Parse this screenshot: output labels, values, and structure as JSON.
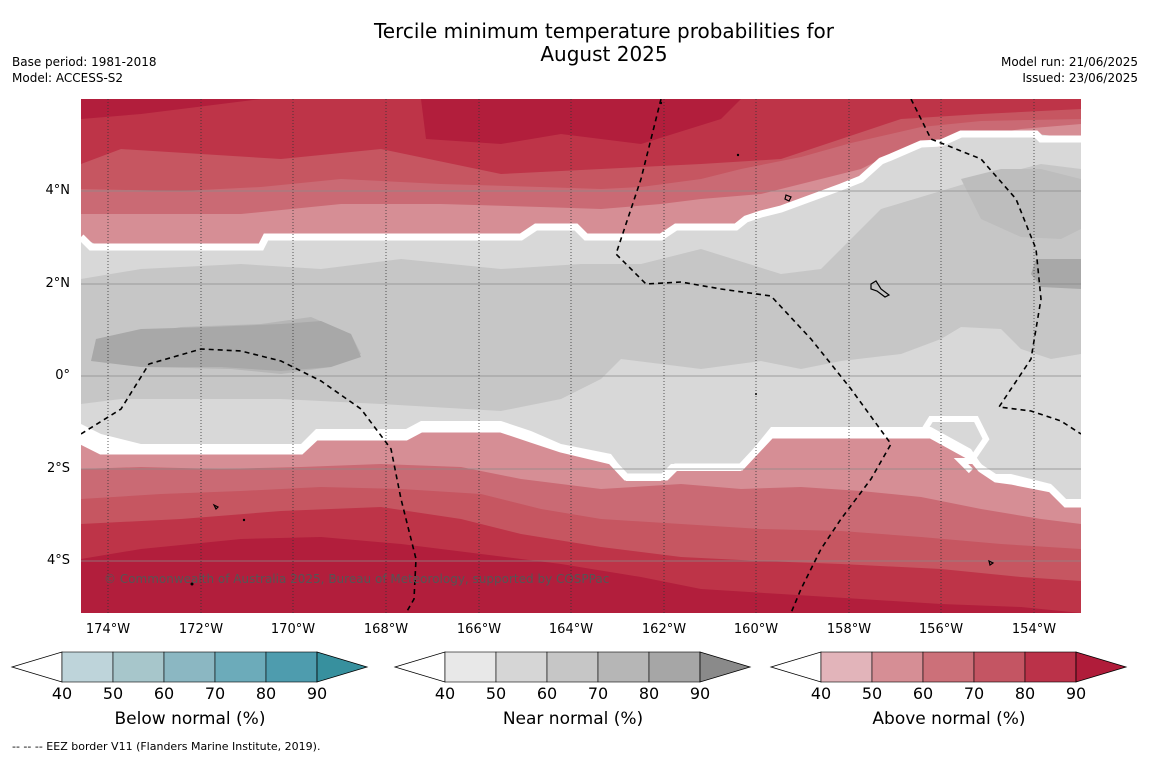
{
  "title": {
    "line1": "Tercile minimum temperature probabilities for",
    "line2": "August 2025"
  },
  "meta_left": {
    "base_period": "Base period: 1981-2018",
    "model": "Model: ACCESS-S2"
  },
  "meta_right": {
    "model_run": "Model run: 21/06/2025",
    "issued": "Issued: 23/06/2025"
  },
  "map": {
    "lat_labels": [
      "4°N",
      "2°N",
      "0°",
      "2°S",
      "4°S"
    ],
    "lon_labels": [
      "174°W",
      "172°W",
      "170°W",
      "168°W",
      "166°W",
      "164°W",
      "162°W",
      "160°W",
      "158°W",
      "156°W",
      "154°W"
    ],
    "copyright": "© Commonwealth of Australia 2025, Bureau of Meteorology, supported by COSPPac",
    "colors": {
      "above_90": "#b21e3c",
      "above_80": "#be3448",
      "above_70": "#c65661",
      "above_60": "#ca6a74",
      "above_50": "#d68e95",
      "near_50": "#d8d8d8",
      "near_60": "#c6c6c6",
      "near_70": "#b6b6b6",
      "near_80": "#a8a8a8"
    }
  },
  "colorbars": [
    {
      "label": "Below normal (%)",
      "ticks": [
        "40",
        "50",
        "60",
        "70",
        "80",
        "90"
      ],
      "colors": [
        "#bed4da",
        "#a7c6cb",
        "#8bb7c2",
        "#6cabba",
        "#4e9cae",
        "#37909e"
      ]
    },
    {
      "label": "Near normal (%)",
      "ticks": [
        "40",
        "50",
        "60",
        "70",
        "80",
        "90"
      ],
      "colors": [
        "#e8e8e8",
        "#d6d6d6",
        "#c6c6c6",
        "#b6b6b6",
        "#a6a6a6",
        "#8a8a8a"
      ]
    },
    {
      "label": "Above normal (%)",
      "ticks": [
        "40",
        "50",
        "60",
        "70",
        "80",
        "90"
      ],
      "colors": [
        "#e2b4ba",
        "#d68e95",
        "#cc7079",
        "#c45563",
        "#bb3249",
        "#b01c3a"
      ]
    }
  ],
  "footer": "--  --  -- EEZ border V11 (Flanders Marine Institute, 2019)."
}
